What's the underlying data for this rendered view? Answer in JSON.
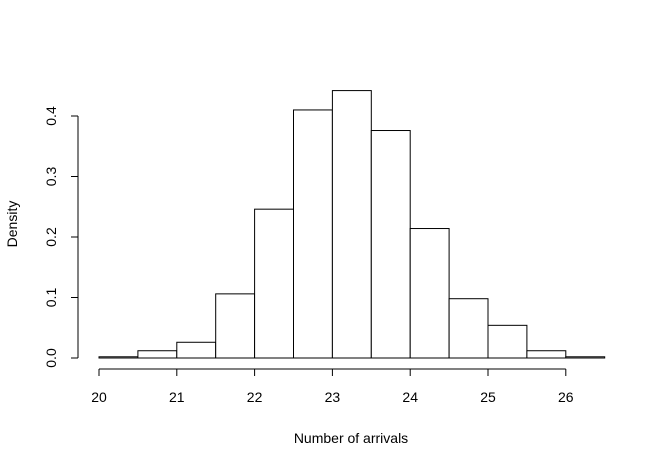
{
  "chart_data": {
    "type": "bar",
    "title": "",
    "xlabel": "Number of arrivals",
    "ylabel": "Density",
    "bin_edges": [
      20.0,
      20.5,
      21.0,
      21.5,
      22.0,
      22.5,
      23.0,
      23.5,
      24.0,
      24.5,
      25.0,
      25.5,
      26.0,
      26.5
    ],
    "values": [
      0.002,
      0.012,
      0.026,
      0.106,
      0.246,
      0.41,
      0.442,
      0.376,
      0.214,
      0.098,
      0.054,
      0.012,
      0.002
    ],
    "xlim": [
      20,
      26.5
    ],
    "ylim": [
      0,
      0.45
    ],
    "x_ticks": [
      20,
      21,
      22,
      23,
      24,
      25,
      26
    ],
    "x_tick_labels": [
      "20",
      "21",
      "22",
      "23",
      "24",
      "25",
      "26"
    ],
    "y_ticks": [
      0.0,
      0.1,
      0.2,
      0.3,
      0.4
    ],
    "y_tick_labels": [
      "0.0",
      "0.1",
      "0.2",
      "0.3",
      "0.4"
    ],
    "grid": false,
    "legend": "none"
  }
}
